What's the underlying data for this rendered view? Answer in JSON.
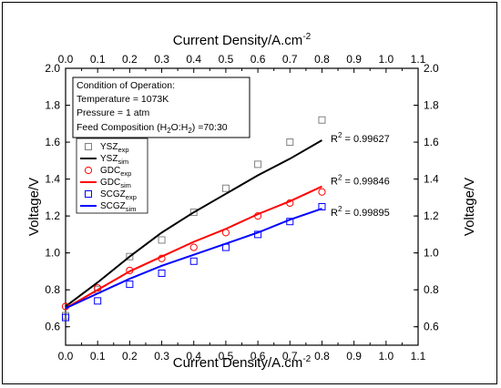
{
  "chart_data": {
    "type": "line",
    "xlabel_bottom": "Current Density/A.cm",
    "xlabel_top": "Current Density/A.cm",
    "xlabel_superscript": "-2",
    "ylabel_left": "Voltage/V",
    "ylabel_right": "Voltage/V",
    "xlim": [
      0.0,
      1.1
    ],
    "ylim": [
      0.5,
      2.0
    ],
    "xticks": [
      "0.0",
      "0.1",
      "0.2",
      "0.3",
      "0.4",
      "0.5",
      "0.6",
      "0.7",
      "0.8",
      "0.9",
      "1.0",
      "1.1"
    ],
    "yticks": [
      "0.6",
      "0.8",
      "1.0",
      "1.2",
      "1.4",
      "1.6",
      "1.8",
      "2.0"
    ],
    "annotation": {
      "lines": [
        "Condition of Operation:",
        "Temperature = 1073K",
        "Pressure = 1 atm"
      ],
      "feed_label": "Feed Composition (H",
      "feed_sub1": "2",
      "feed_mid": "O:H",
      "feed_sub2": "2",
      "feed_end": ") =70:30"
    },
    "r2_labels": [
      {
        "prefix": "R",
        "sup": "2",
        "text": " = 0.99627",
        "y": 1.62
      },
      {
        "prefix": "R",
        "sup": "2",
        "text": " = 0.99846",
        "y": 1.39
      },
      {
        "prefix": "R",
        "sup": "2",
        "text": " = 0.99895",
        "y": 1.22
      }
    ],
    "series": [
      {
        "name": "YSZ",
        "sub": "exp",
        "kind": "marker",
        "marker": "square",
        "color": "#808080",
        "x": [
          0.0,
          0.1,
          0.2,
          0.3,
          0.4,
          0.5,
          0.6,
          0.7,
          0.8
        ],
        "y": [
          0.66,
          0.8,
          0.98,
          1.07,
          1.22,
          1.35,
          1.48,
          1.6,
          1.72
        ]
      },
      {
        "name": "YSZ",
        "sub": "sim",
        "kind": "line",
        "color": "#000000",
        "x": [
          0.0,
          0.1,
          0.2,
          0.3,
          0.4,
          0.5,
          0.6,
          0.7,
          0.8
        ],
        "y": [
          0.71,
          0.84,
          0.98,
          1.11,
          1.22,
          1.32,
          1.42,
          1.51,
          1.61
        ]
      },
      {
        "name": "GDC",
        "sub": "exp",
        "kind": "marker",
        "marker": "circle",
        "color": "#ff0000",
        "x": [
          0.0,
          0.1,
          0.2,
          0.3,
          0.4,
          0.5,
          0.6,
          0.7,
          0.8
        ],
        "y": [
          0.71,
          0.81,
          0.905,
          0.97,
          1.03,
          1.11,
          1.2,
          1.27,
          1.33
        ]
      },
      {
        "name": "GDC",
        "sub": "sim",
        "kind": "line",
        "color": "#ff0000",
        "x": [
          0.0,
          0.1,
          0.2,
          0.3,
          0.4,
          0.5,
          0.6,
          0.7,
          0.8
        ],
        "y": [
          0.7,
          0.8,
          0.9,
          0.98,
          1.06,
          1.13,
          1.21,
          1.28,
          1.36
        ]
      },
      {
        "name": "SCGZ",
        "sub": "exp",
        "kind": "marker",
        "marker": "square",
        "color": "#0000ff",
        "x": [
          0.0,
          0.1,
          0.2,
          0.3,
          0.4,
          0.5,
          0.6,
          0.7,
          0.8
        ],
        "y": [
          0.65,
          0.74,
          0.83,
          0.89,
          0.955,
          1.03,
          1.1,
          1.17,
          1.25
        ]
      },
      {
        "name": "SCGZ",
        "sub": "sim",
        "kind": "line",
        "color": "#0000ff",
        "x": [
          0.0,
          0.1,
          0.2,
          0.3,
          0.4,
          0.5,
          0.6,
          0.7,
          0.8
        ],
        "y": [
          0.7,
          0.78,
          0.86,
          0.93,
          0.99,
          1.05,
          1.11,
          1.18,
          1.24
        ]
      }
    ]
  }
}
